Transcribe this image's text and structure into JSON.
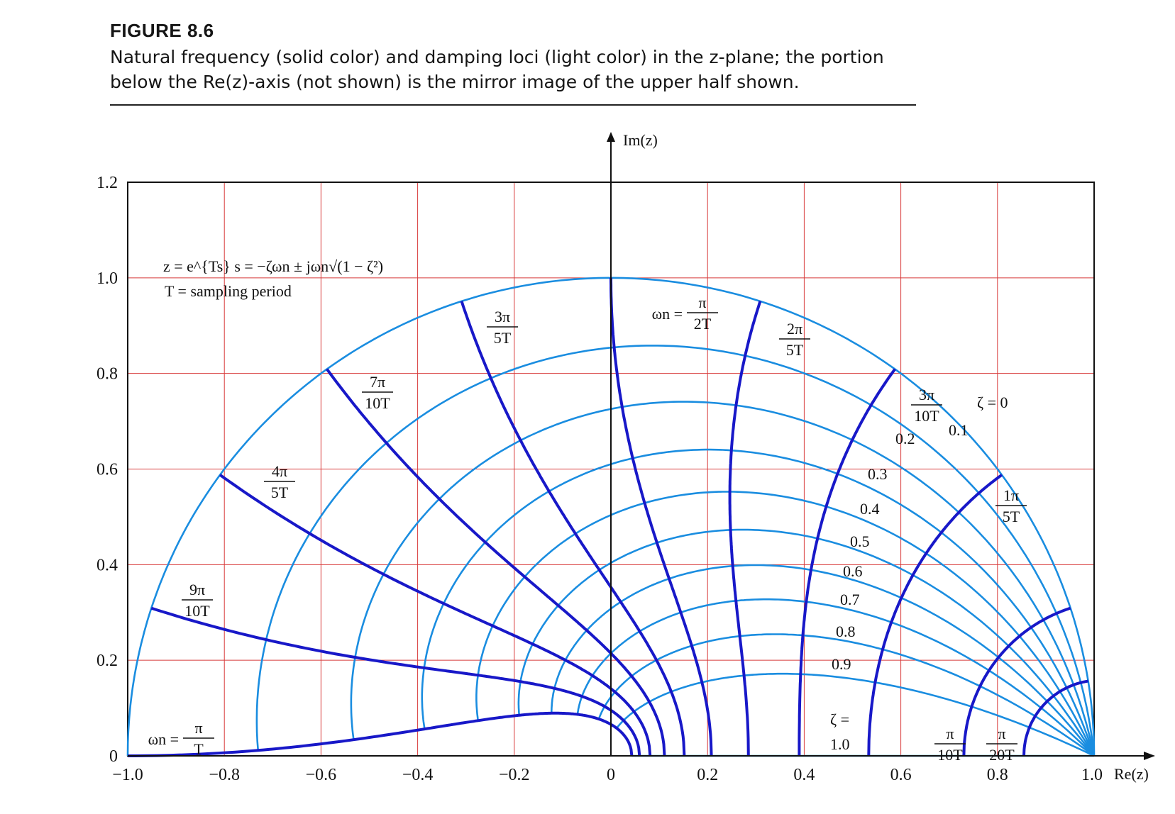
{
  "figure": {
    "label": "FIGURE 8.6",
    "caption": "Natural frequency (solid color) and damping loci (light color) in the z-plane; the portion below the Re(z)-axis (not shown) is the mirror image of the upper half shown."
  },
  "colors": {
    "damping_loci": "#1a8de0",
    "frequency_loci": "#1818c8",
    "grid": "#d83a3a",
    "axes": "#111111"
  },
  "chart_data": {
    "type": "line",
    "title": "",
    "xlabel": "Re(z)",
    "ylabel": "Im(z)",
    "xlim": [
      -1.0,
      1.0
    ],
    "ylim": [
      0,
      1.2
    ],
    "grid": true,
    "x_ticks": [
      "−1.0",
      "−0.8",
      "−0.6",
      "−0.4",
      "−0.2",
      "0",
      "0.2",
      "0.4",
      "0.6",
      "0.8",
      "1.0"
    ],
    "y_ticks": [
      "0",
      "0.2",
      "0.4",
      "0.6",
      "0.8",
      "1.0",
      "1.2"
    ],
    "formula_line1": "z = e^{Ts}    s = −ζωn ± jωn√(1 − ζ²)",
    "formula_line2": "T = sampling period",
    "damping_loci": {
      "description": "constant damping ratio ζ curves, ωnT from 0 to π",
      "zeta_values": [
        0,
        0.1,
        0.2,
        0.3,
        0.4,
        0.5,
        0.6,
        0.7,
        0.8,
        0.9,
        1.0
      ],
      "labels": [
        "ζ = 0",
        "0.1",
        "0.2",
        "0.3",
        "0.4",
        "0.5",
        "0.6",
        "0.7",
        "0.8",
        "0.9",
        "ζ =",
        "1.0"
      ]
    },
    "frequency_loci": {
      "description": "constant natural frequency curves, ζ from 0 to 1",
      "wnT_over_pi": [
        0.05,
        0.1,
        0.2,
        0.3,
        0.4,
        0.5,
        0.6,
        0.7,
        0.8,
        0.9,
        1.0
      ],
      "labels": [
        {
          "num": "π",
          "den": "20T"
        },
        {
          "num": "π",
          "den": "10T"
        },
        {
          "num": "1π",
          "den": "5T"
        },
        {
          "num": "3π",
          "den": "10T"
        },
        {
          "num": "2π",
          "den": "5T"
        },
        {
          "num": "π",
          "den": "2T",
          "prefix": "ωn ="
        },
        {
          "num": "3π",
          "den": "5T"
        },
        {
          "num": "7π",
          "den": "10T"
        },
        {
          "num": "4π",
          "den": "5T"
        },
        {
          "num": "9π",
          "den": "10T"
        },
        {
          "num": "π",
          "den": "T",
          "prefix": "ωn ="
        }
      ]
    }
  }
}
